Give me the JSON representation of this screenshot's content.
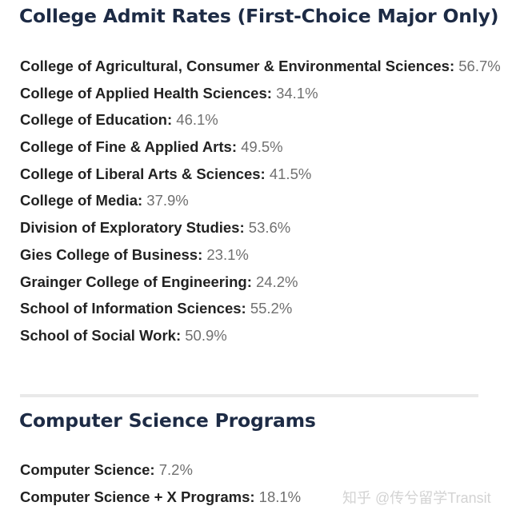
{
  "section1": {
    "title": "College Admit Rates (First-Choice Major Only)",
    "items": [
      {
        "label": "College of Agricultural, Consumer & Environmental Sciences:",
        "value": "56.7%"
      },
      {
        "label": "College of Applied Health Sciences:",
        "value": "34.1%"
      },
      {
        "label": "College of Education:",
        "value": "46.1%"
      },
      {
        "label": "College of Fine & Applied Arts:",
        "value": "49.5%"
      },
      {
        "label": "College of Liberal Arts & Sciences:",
        "value": "41.5%"
      },
      {
        "label": "College of Media:",
        "value": "37.9%"
      },
      {
        "label": "Division of Exploratory Studies:",
        "value": "53.6%"
      },
      {
        "label": "Gies College of Business:",
        "value": "23.1%"
      },
      {
        "label": "Grainger College of Engineering:",
        "value": "24.2%"
      },
      {
        "label": "School of Information Sciences:",
        "value": "55.2%"
      },
      {
        "label": "School of Social Work:",
        "value": "50.9%"
      }
    ]
  },
  "section2": {
    "title": "Computer Science Programs",
    "items": [
      {
        "label": "Computer Science:",
        "value": "7.2%"
      },
      {
        "label": "Computer Science + X Programs:",
        "value": "18.1%"
      }
    ]
  },
  "watermark": "知乎 @传兮留学Transit"
}
